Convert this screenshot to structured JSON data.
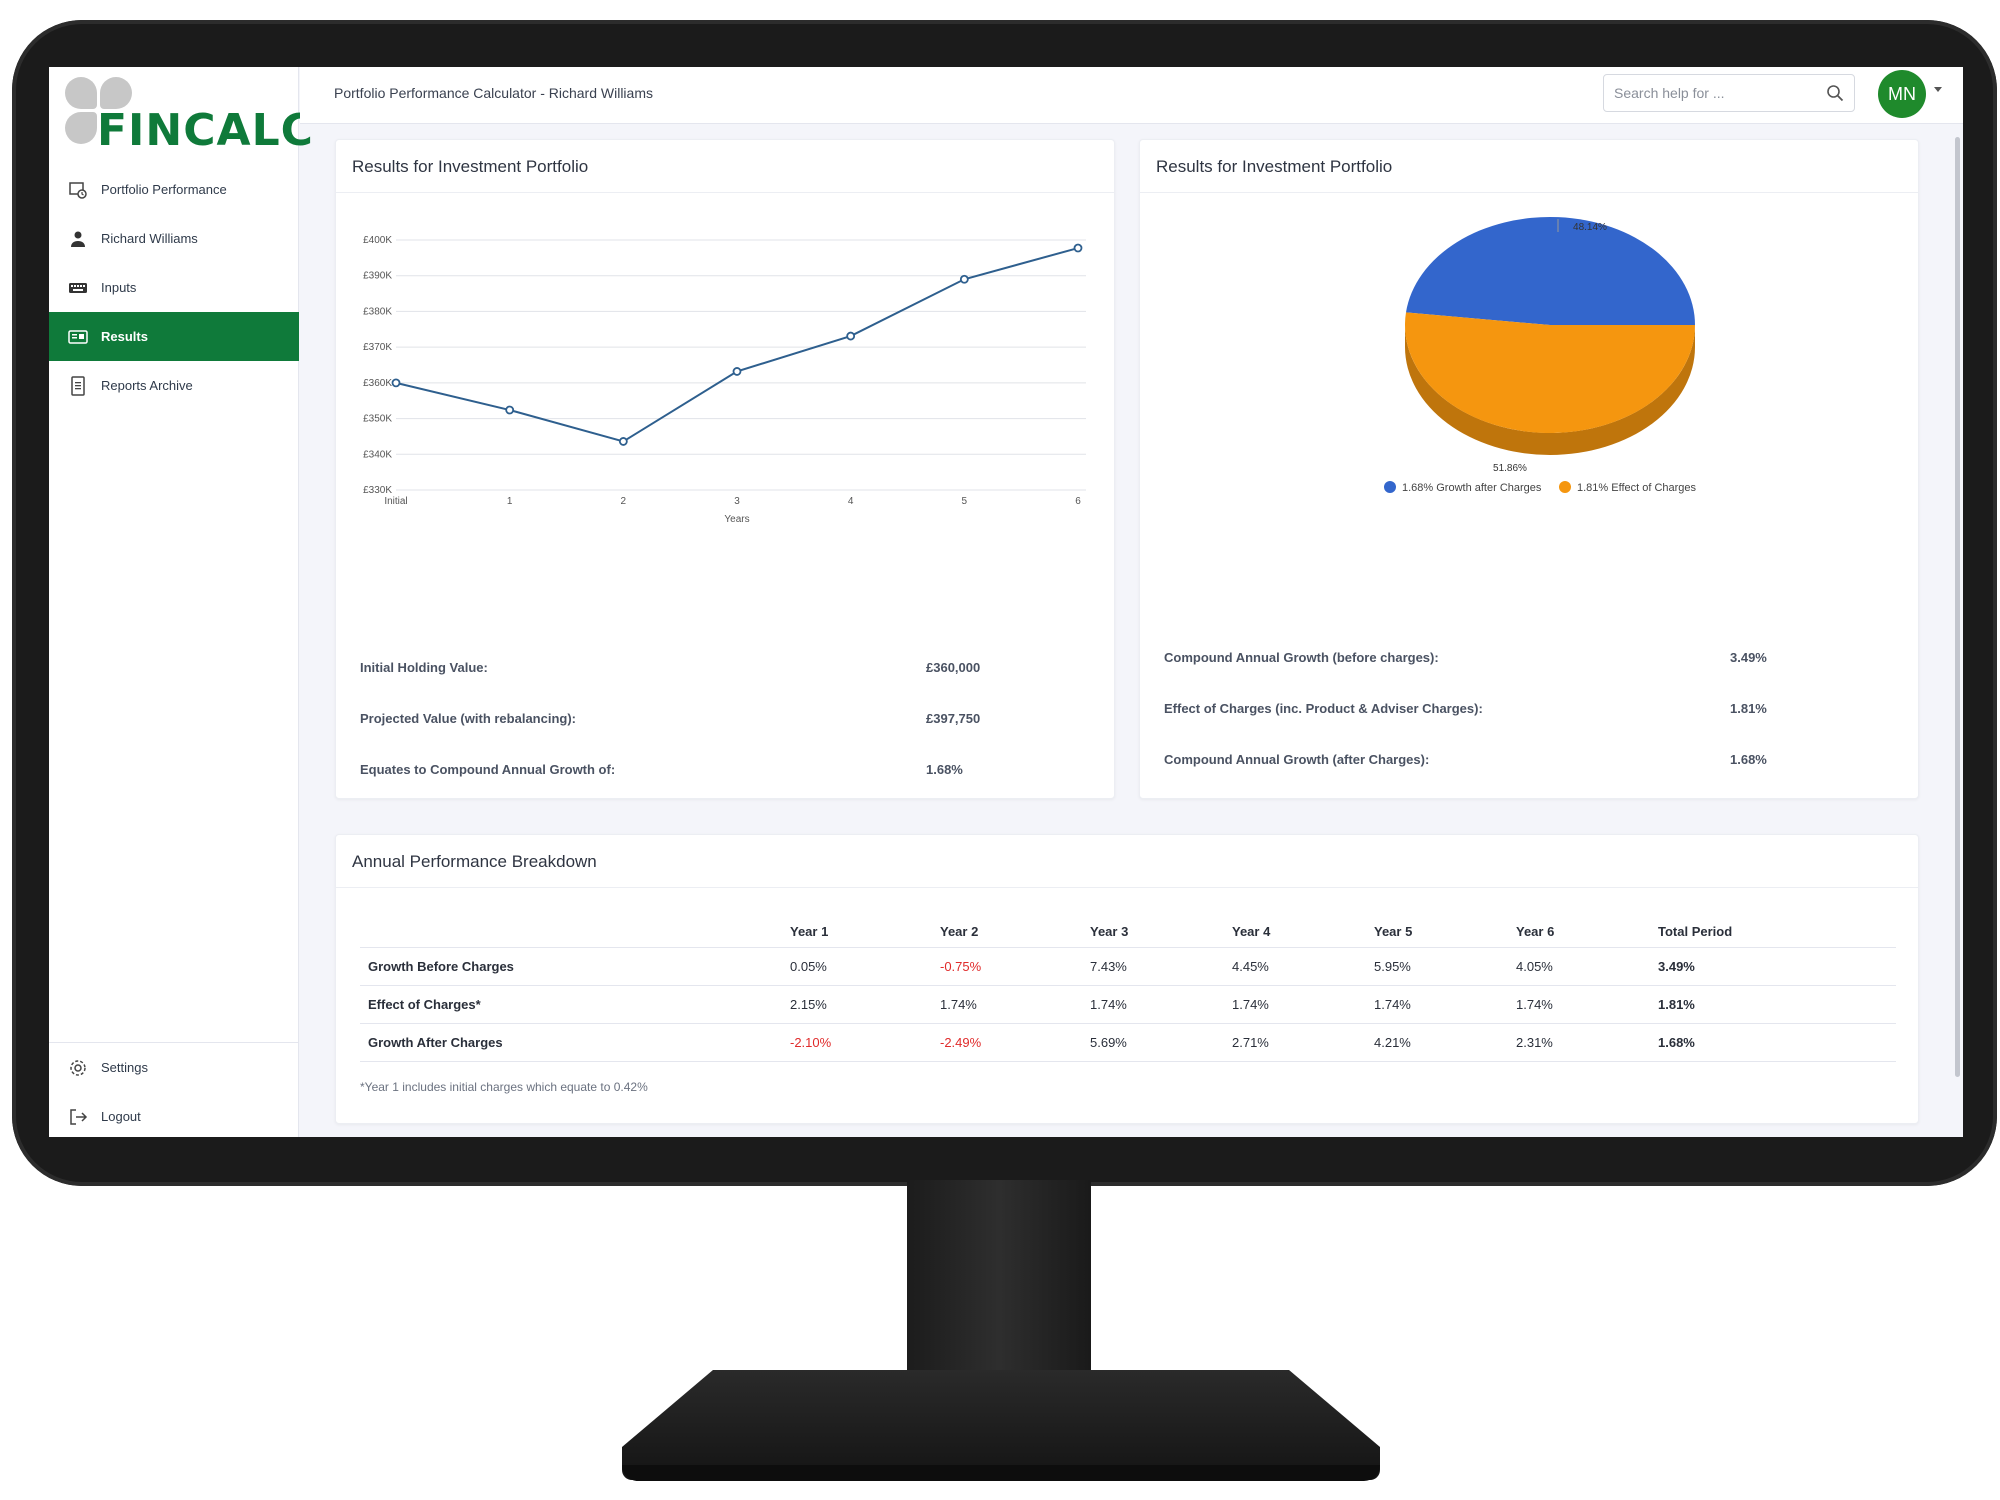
{
  "app": {
    "logo_text": "FINCALC"
  },
  "sidebar": {
    "items": [
      {
        "label": "Portfolio Performance",
        "icon": "portfolio-icon"
      },
      {
        "label": "Richard Williams",
        "icon": "user-icon"
      },
      {
        "label": "Inputs",
        "icon": "keyboard-icon"
      },
      {
        "label": "Results",
        "icon": "results-icon",
        "active": true
      },
      {
        "label": "Reports Archive",
        "icon": "document-icon"
      }
    ],
    "bottom_items": [
      {
        "label": "Settings",
        "icon": "gear-icon"
      },
      {
        "label": "Logout",
        "icon": "logout-icon"
      }
    ]
  },
  "header": {
    "title": "Portfolio Performance Calculator - Richard Williams",
    "search_placeholder": "Search help for ...",
    "avatar_initials": "MN"
  },
  "colors": {
    "brand_green": "#0f7a3a",
    "pie_blue": "#3366cc",
    "pie_orange": "#f5960f",
    "negative_red": "#e02b2b",
    "line": "#2e5f8e"
  },
  "left_card": {
    "title": "Results for Investment Portfolio",
    "stats": [
      {
        "label": "Initial Holding Value:",
        "value": "£360,000"
      },
      {
        "label": "Projected Value (with rebalancing):",
        "value": "£397,750"
      },
      {
        "label": "Equates to Compound Annual Growth of:",
        "value": "1.68%"
      }
    ]
  },
  "right_card": {
    "title": "Results for Investment Portfolio",
    "stats": [
      {
        "label": "Compound Annual Growth (before charges):",
        "value": "3.49%"
      },
      {
        "label": "Effect of Charges (inc. Product & Adviser Charges):",
        "value": "1.81%"
      },
      {
        "label": "Compound Annual Growth (after Charges):",
        "value": "1.68%"
      }
    ]
  },
  "chart_data": [
    {
      "type": "line",
      "xlabel": "Years",
      "categories": [
        "Initial",
        "1",
        "2",
        "3",
        "4",
        "5",
        "6"
      ],
      "values": [
        360000,
        352400,
        343600,
        363200,
        373100,
        389000,
        397750
      ],
      "ylim": [
        330000,
        400000
      ],
      "yticks": [
        "£330K",
        "£340K",
        "£350K",
        "£360K",
        "£370K",
        "£380K",
        "£390K",
        "£400K"
      ],
      "grid": true
    },
    {
      "type": "pie",
      "slices": [
        {
          "label": "1.68% Growth after Charges",
          "value": 48.14,
          "value_label": "48.14%",
          "color": "#3366cc"
        },
        {
          "label": "1.81% Effect of Charges",
          "value": 51.86,
          "value_label": "51.86%",
          "color": "#f5960f"
        }
      ],
      "legend": "bottom"
    }
  ],
  "breakdown": {
    "title": "Annual Performance Breakdown",
    "columns": [
      "",
      "Year 1",
      "Year 2",
      "Year 3",
      "Year 4",
      "Year 5",
      "Year 6",
      "Total Period"
    ],
    "rows": [
      {
        "label": "Growth Before Charges",
        "values": [
          "0.05%",
          "-0.75%",
          "7.43%",
          "4.45%",
          "5.95%",
          "4.05%"
        ],
        "total": "3.49%"
      },
      {
        "label": "Effect of Charges*",
        "values": [
          "2.15%",
          "1.74%",
          "1.74%",
          "1.74%",
          "1.74%",
          "1.74%"
        ],
        "total": "1.81%"
      },
      {
        "label": "Growth After Charges",
        "values": [
          "-2.10%",
          "-2.49%",
          "5.69%",
          "2.71%",
          "4.21%",
          "2.31%"
        ],
        "total": "1.68%"
      }
    ],
    "footnote": "*Year 1 includes initial charges which equate to 0.42%"
  }
}
